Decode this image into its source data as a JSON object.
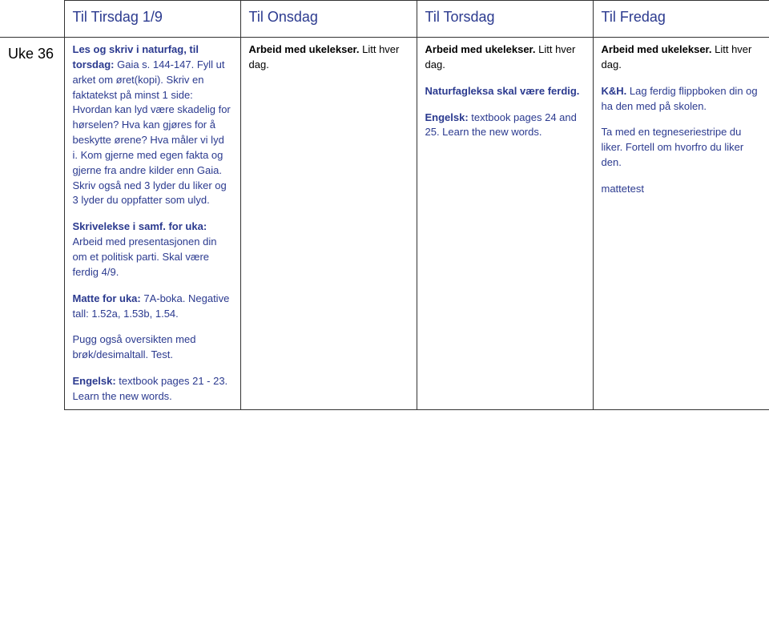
{
  "colors": {
    "blue": "#2b3a8f",
    "black": "#000000",
    "border": "#333333",
    "background": "#ffffff"
  },
  "typography": {
    "body_family": "Verdana",
    "body_size_pt": 10,
    "header_size_pt": 14
  },
  "header": {
    "blank": "",
    "tuesday": "Til Tirsdag 1/9",
    "wednesday": "Til Onsdag",
    "thursday": "Til Torsdag",
    "friday": "Til Fredag"
  },
  "week_label": "Uke 36",
  "tuesday": {
    "p1_lead": "Les og skriv i naturfag, til torsdag:",
    "p1_rest": " Gaia s. 144-147. Fyll ut arket om øret(kopi). Skriv en faktatekst på minst 1 side: Hvordan kan lyd være skadelig for hørselen? Hva kan gjøres for å beskytte ørene? Hva måler vi lyd i. Kom gjerne med egen fakta og gjerne fra andre kilder enn Gaia. Skriv også ned 3 lyder du liker og 3 lyder du oppfatter som ulyd.",
    "p2_lead": "Skrivelekse i samf. for uka: ",
    "p2_rest": "Arbeid med presentasjonen din om et politisk parti. Skal være ferdig 4/9.",
    "p3_lead": "Matte for uka: ",
    "p3_rest": "7A-boka. Negative tall: 1.52a, 1.53b, 1.54.",
    "p4": "Pugg også oversikten med brøk/desimaltall. Test.",
    "p5_lead": "Engelsk: ",
    "p5_rest": "textbook pages 21 - 23. Learn the new words."
  },
  "wednesday": {
    "p1_lead": "Arbeid med ukelekser.",
    "p1_rest": " Litt hver dag."
  },
  "thursday": {
    "p1_lead": "Arbeid med ukelekser.",
    "p1_rest": " Litt hver dag.",
    "p2": "Naturfagleksa skal være ferdig.",
    "p3_lead": "Engelsk: ",
    "p3_rest": "textbook pages 24 and 25. Learn the new words."
  },
  "friday": {
    "p1_lead": "Arbeid med ukelekser.",
    "p1_rest": " Litt hver dag.",
    "p2_lead": "K&H.",
    "p2_rest": " Lag ferdig flippboken din og ha den med på skolen.",
    "p3": "Ta med en tegneseriestripe du liker. Fortell om hvorfro du liker den.",
    "p4": "mattetest"
  }
}
